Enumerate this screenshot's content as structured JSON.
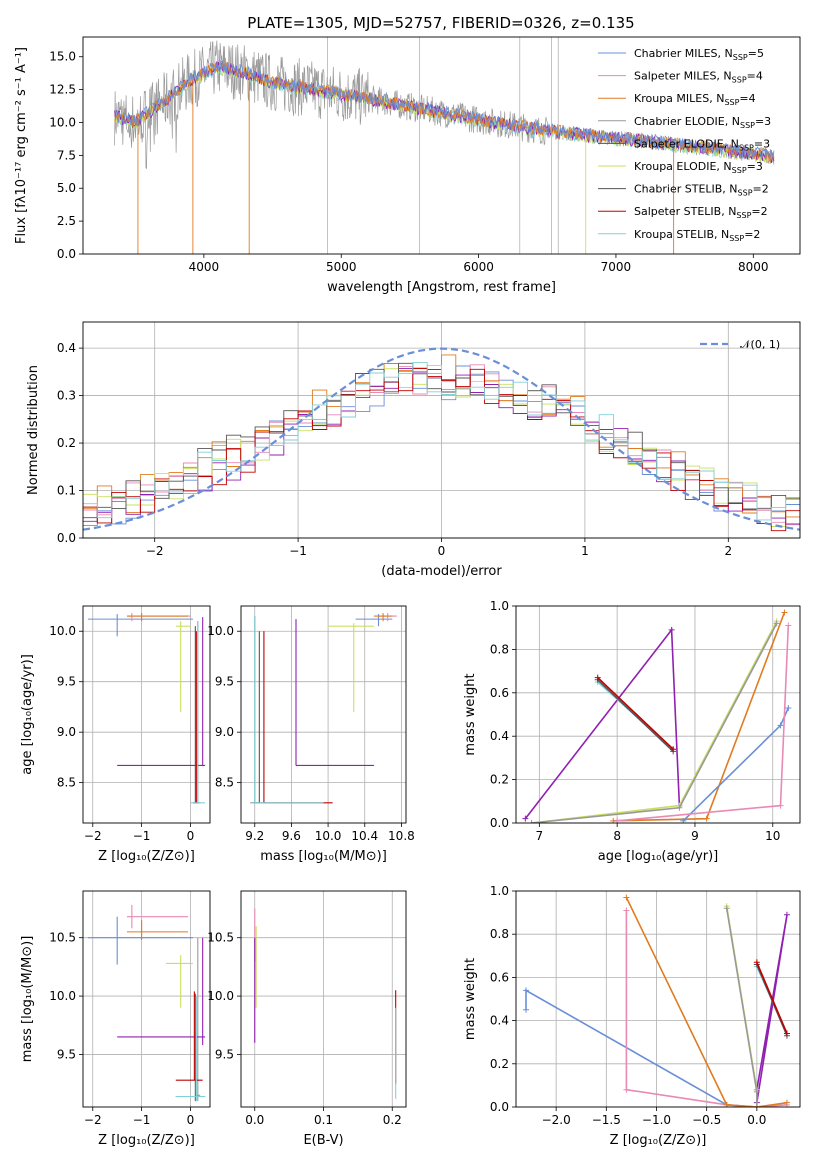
{
  "title": "PLATE=1305, MJD=52757, FIBERID=0326, z=0.135",
  "colors": {
    "chabrier_miles": "#6a8fd8",
    "salpeter_miles": "#e88ab4",
    "kroupa_miles": "#e07b20",
    "chabrier_elodie": "#999999",
    "salpeter_elodie": "#9020b0",
    "kroupa_elodie": "#c8e060",
    "chabrier_stelib": "#555555",
    "salpeter_stelib": "#c00000",
    "kroupa_stelib": "#80d0d8",
    "normal": "#6a8fd8"
  },
  "legend": [
    {
      "key": "chabrier_miles",
      "text": "Chabrier MILES, N",
      "sub": "SSP",
      "tail": "=5"
    },
    {
      "key": "salpeter_miles",
      "text": "Salpeter MILES, N",
      "sub": "SSP",
      "tail": "=4"
    },
    {
      "key": "kroupa_miles",
      "text": "Kroupa MILES, N",
      "sub": "SSP",
      "tail": "=4"
    },
    {
      "key": "chabrier_elodie",
      "text": "Chabrier ELODIE, N",
      "sub": "SSP",
      "tail": "=3"
    },
    {
      "key": "salpeter_elodie",
      "text": "Salpeter ELODIE, N",
      "sub": "SSP",
      "tail": "=3"
    },
    {
      "key": "kroupa_elodie",
      "text": "Kroupa ELODIE, N",
      "sub": "SSP",
      "tail": "=3"
    },
    {
      "key": "chabrier_stelib",
      "text": "Chabrier STELIB, N",
      "sub": "SSP",
      "tail": "=2"
    },
    {
      "key": "salpeter_stelib",
      "text": "Salpeter STELIB, N",
      "sub": "SSP",
      "tail": "=2"
    },
    {
      "key": "kroupa_stelib",
      "text": "Kroupa STELIB, N",
      "sub": "SSP",
      "tail": "=2"
    }
  ],
  "chart_data": [
    {
      "id": "spectrum",
      "type": "line",
      "xlabel": "wavelength [Angstrom, rest frame]",
      "ylabel": "Flux [fλ10⁻¹⁷ erg cm⁻² s⁻¹ A⁻¹]",
      "xlim": [
        3120,
        8340
      ],
      "ylim": [
        0,
        16.5
      ],
      "xticks": [
        4000,
        5000,
        6000,
        7000,
        8000
      ],
      "yticks": [
        0.0,
        2.5,
        5.0,
        7.5,
        10.0,
        12.5,
        15.0
      ],
      "continuum": {
        "x": [
          3350,
          3500,
          3700,
          3900,
          4100,
          4300,
          4500,
          4800,
          5200,
          5600,
          6000,
          6400,
          6800,
          7200,
          7600,
          8000,
          8150
        ],
        "y": [
          10.5,
          10.0,
          11.5,
          13.2,
          14.2,
          13.8,
          13.0,
          12.5,
          11.8,
          11.0,
          10.2,
          9.5,
          9.0,
          8.6,
          8.1,
          7.6,
          7.4
        ]
      },
      "model_range": [
        3400,
        7400
      ],
      "legend_loc": "upper right",
      "grid": false
    },
    {
      "id": "residuals",
      "type": "histogram",
      "xlabel": "(data-model)/error",
      "ylabel": "Normed distribution",
      "xlim": [
        -2.5,
        2.5
      ],
      "ylim": [
        0,
        0.455
      ],
      "xticks": [
        -2,
        -1,
        0,
        1,
        2
      ],
      "yticks": [
        0.0,
        0.1,
        0.2,
        0.3,
        0.4
      ],
      "bin_width": 0.1,
      "normal_curve_label": "𝒩(0, 1)",
      "legend_loc": "upper right",
      "grid": true
    },
    {
      "id": "z_age",
      "type": "errorbar",
      "xlabel": "Z [log₁₀(Z/Z⊙)]",
      "ylabel": "age  [log₁₀(age/yr)]",
      "xlim": [
        -2.2,
        0.4
      ],
      "ylim": [
        8.1,
        10.25
      ],
      "xticks": [
        -2,
        -1,
        0
      ],
      "yticks": [
        8.5,
        9.0,
        9.5,
        10.0
      ],
      "grid": true,
      "points": [
        {
          "key": "chabrier_miles",
          "x": -1.5,
          "xlo": -2.1,
          "xhi": 0.05,
          "y": 10.12,
          "ylo": 9.95,
          "yhi": 10.17
        },
        {
          "key": "salpeter_miles",
          "x": -1.2,
          "xlo": -1.3,
          "xhi": 0.0,
          "y": 10.15,
          "ylo": 10.1,
          "yhi": 10.18
        },
        {
          "key": "kroupa_miles",
          "x": -1.0,
          "xlo": -1.3,
          "xhi": -0.05,
          "y": 10.15,
          "ylo": 10.1,
          "yhi": 10.18
        },
        {
          "key": "chabrier_elodie",
          "x": 0.15,
          "xlo": 0.1,
          "xhi": 0.2,
          "y": 8.3,
          "ylo": 8.3,
          "yhi": 10.1
        },
        {
          "key": "salpeter_elodie",
          "x": 0.25,
          "xlo": -1.5,
          "xhi": 0.3,
          "y": 8.67,
          "ylo": 8.67,
          "yhi": 10.14
        },
        {
          "key": "kroupa_elodie",
          "x": -0.2,
          "xlo": -0.3,
          "xhi": 0.0,
          "y": 10.05,
          "ylo": 9.2,
          "yhi": 10.1
        },
        {
          "key": "chabrier_stelib",
          "x": 0.1,
          "xlo": 0.05,
          "xhi": 0.15,
          "y": 8.3,
          "ylo": 8.3,
          "yhi": 10.05
        },
        {
          "key": "salpeter_stelib",
          "x": 0.12,
          "xlo": 0.08,
          "xhi": 0.16,
          "y": 8.3,
          "ylo": 8.3,
          "yhi": 10.0
        },
        {
          "key": "kroupa_stelib",
          "x": 0.15,
          "xlo": 0.0,
          "xhi": 0.3,
          "y": 8.3,
          "ylo": 8.3,
          "yhi": 10.1
        }
      ]
    },
    {
      "id": "mass_age",
      "type": "errorbar",
      "xlabel": "mass [log₁₀(M/M⊙)]",
      "ylabel": "",
      "xlim": [
        9.05,
        10.85
      ],
      "ylim": [
        8.1,
        10.25
      ],
      "xticks": [
        9.2,
        9.6,
        10.0,
        10.4,
        10.8
      ],
      "ytick_values": [
        8.5,
        9.0,
        9.5,
        10.0
      ],
      "xtick_labels": [
        "9.2",
        "9.6",
        "10.0",
        "10.4",
        "10.8"
      ],
      "grid": true,
      "points": [
        {
          "key": "chabrier_miles",
          "x": 10.55,
          "xlo": 10.3,
          "xhi": 10.7,
          "y": 10.12,
          "ylo": 10.05,
          "yhi": 10.17
        },
        {
          "key": "salpeter_miles",
          "x": 10.65,
          "xlo": 10.55,
          "xhi": 10.75,
          "y": 10.15,
          "ylo": 10.1,
          "yhi": 10.18
        },
        {
          "key": "kroupa_miles",
          "x": 10.6,
          "xlo": 10.5,
          "xhi": 10.7,
          "y": 10.15,
          "ylo": 10.1,
          "yhi": 10.18
        },
        {
          "key": "chabrier_elodie",
          "x": 9.2,
          "xlo": 9.15,
          "xhi": 9.25,
          "y": 8.3,
          "ylo": 8.3,
          "yhi": 10.15
        },
        {
          "key": "salpeter_elodie",
          "x": 9.65,
          "xlo": 9.65,
          "xhi": 10.5,
          "y": 8.67,
          "ylo": 8.67,
          "yhi": 10.12
        },
        {
          "key": "kroupa_elodie",
          "x": 10.28,
          "xlo": 10.0,
          "xhi": 10.5,
          "y": 10.05,
          "ylo": 9.2,
          "yhi": 10.08
        },
        {
          "key": "chabrier_stelib",
          "x": 9.25,
          "xlo": 9.2,
          "xhi": 9.3,
          "y": 8.3,
          "ylo": 8.3,
          "yhi": 10.0
        },
        {
          "key": "salpeter_stelib",
          "x": 9.3,
          "xlo": 9.3,
          "xhi": 10.05,
          "y": 8.3,
          "ylo": 8.3,
          "yhi": 10.0
        },
        {
          "key": "kroupa_stelib",
          "x": 9.2,
          "xlo": 9.2,
          "xhi": 9.95,
          "y": 8.3,
          "ylo": 8.3,
          "yhi": 10.15
        }
      ]
    },
    {
      "id": "age_weight",
      "type": "line",
      "xlabel": "age  [log₁₀(age/yr)]",
      "ylabel": "mass weight",
      "xlim": [
        6.7,
        10.35
      ],
      "ylim": [
        0,
        1.0
      ],
      "xticks": [
        7,
        8,
        9,
        10
      ],
      "yticks": [
        0.0,
        0.2,
        0.4,
        0.6,
        0.8,
        1.0
      ],
      "grid": true,
      "series": [
        {
          "key": "kroupa_miles",
          "x": [
            7.95,
            9.15,
            10.15
          ],
          "y": [
            0.01,
            0.02,
            0.97
          ]
        },
        {
          "key": "chabrier_miles",
          "x": [
            8.85,
            10.1,
            10.2
          ],
          "y": [
            0.01,
            0.45,
            0.53
          ]
        },
        {
          "key": "salpeter_miles",
          "x": [
            8.0,
            10.1,
            10.2
          ],
          "y": [
            0.01,
            0.08,
            0.91
          ]
        },
        {
          "key": "salpeter_elodie",
          "x": [
            6.82,
            8.7,
            8.8
          ],
          "y": [
            0.02,
            0.89,
            0.08
          ]
        },
        {
          "key": "kroupa_elodie",
          "x": [
            6.9,
            8.8,
            10.05
          ],
          "y": [
            0.0,
            0.08,
            0.93
          ]
        },
        {
          "key": "chabrier_elodie",
          "x": [
            6.9,
            8.8,
            10.05
          ],
          "y": [
            0.0,
            0.07,
            0.92
          ]
        },
        {
          "key": "kroupa_stelib",
          "x": [
            7.75,
            8.72
          ],
          "y": [
            0.65,
            0.34
          ]
        },
        {
          "key": "chabrier_stelib",
          "x": [
            7.75,
            8.72
          ],
          "y": [
            0.66,
            0.33
          ]
        },
        {
          "key": "salpeter_stelib",
          "x": [
            7.75,
            8.72
          ],
          "y": [
            0.67,
            0.34
          ]
        }
      ]
    },
    {
      "id": "z_mass",
      "type": "errorbar",
      "xlabel": "Z [log₁₀(Z/Z⊙)]",
      "ylabel": "mass [log₁₀(M/M⊙)]",
      "xlim": [
        -2.2,
        0.4
      ],
      "ylim": [
        9.05,
        10.9
      ],
      "xticks": [
        -2,
        -1,
        0
      ],
      "yticks": [
        9.5,
        10.0,
        10.5
      ],
      "grid": true,
      "points": [
        {
          "key": "chabrier_miles",
          "x": -1.5,
          "xlo": -2.1,
          "xhi": 0.05,
          "y": 10.5,
          "ylo": 10.27,
          "yhi": 10.68
        },
        {
          "key": "salpeter_miles",
          "x": -1.2,
          "xlo": -1.3,
          "xhi": -0.05,
          "y": 10.68,
          "ylo": 10.58,
          "yhi": 10.78
        },
        {
          "key": "kroupa_miles",
          "x": -1.0,
          "xlo": -1.3,
          "xhi": -0.05,
          "y": 10.55,
          "ylo": 10.48,
          "yhi": 10.65
        },
        {
          "key": "chabrier_elodie",
          "x": 0.15,
          "xlo": 0.1,
          "xhi": 0.2,
          "y": 9.15,
          "ylo": 9.1,
          "yhi": 10.5
        },
        {
          "key": "salpeter_elodie",
          "x": 0.25,
          "xlo": -1.5,
          "xhi": 0.3,
          "y": 9.65,
          "ylo": 9.58,
          "yhi": 10.5
        },
        {
          "key": "kroupa_elodie",
          "x": -0.2,
          "xlo": -0.5,
          "xhi": 0.05,
          "y": 10.28,
          "ylo": 9.9,
          "yhi": 10.35
        },
        {
          "key": "chabrier_stelib",
          "x": 0.1,
          "xlo": -0.3,
          "xhi": 0.3,
          "y": 9.14,
          "ylo": 9.1,
          "yhi": 10.02
        },
        {
          "key": "salpeter_stelib",
          "x": 0.08,
          "xlo": -0.3,
          "xhi": 0.25,
          "y": 9.28,
          "ylo": 9.28,
          "yhi": 10.04
        },
        {
          "key": "kroupa_stelib",
          "x": 0.12,
          "xlo": -0.3,
          "xhi": 0.3,
          "y": 9.14,
          "ylo": 9.1,
          "yhi": 10.0
        }
      ]
    },
    {
      "id": "ebv_mass",
      "type": "errorbar",
      "xlabel": "E(B-V)",
      "ylabel": "",
      "xlim": [
        -0.02,
        0.22
      ],
      "ylim": [
        9.05,
        10.9
      ],
      "xticks": [
        0.0,
        0.1,
        0.2
      ],
      "ytick_values": [
        9.5,
        10.0,
        10.5
      ],
      "xtick_labels": [
        "0.0",
        "0.1",
        "0.2"
      ],
      "grid": true,
      "points": [
        {
          "key": "salpeter_miles",
          "x": 0.0,
          "xlo": 0.0,
          "xhi": 0.0,
          "y": 10.6,
          "ylo": 10.3,
          "yhi": 10.75
        },
        {
          "key": "salpeter_elodie",
          "x": 0.0,
          "xlo": 0.0,
          "xhi": 0.0,
          "y": 10.0,
          "ylo": 9.6,
          "yhi": 10.5
        },
        {
          "key": "kroupa_elodie",
          "x": 0.002,
          "xlo": 0.0,
          "xhi": 0.0,
          "y": 10.2,
          "ylo": 9.9,
          "yhi": 10.6
        },
        {
          "key": "salpeter_stelib",
          "x": 0.205,
          "xlo": 0.205,
          "xhi": 0.205,
          "y": 9.6,
          "ylo": 9.25,
          "yhi": 10.05
        },
        {
          "key": "kroupa_stelib",
          "x": 0.205,
          "xlo": 0.205,
          "xhi": 0.205,
          "y": 9.5,
          "ylo": 9.12,
          "yhi": 9.9
        }
      ]
    },
    {
      "id": "z_weight",
      "type": "line",
      "xlabel": "Z [log₁₀(Z/Z⊙)]",
      "ylabel": "mass weight",
      "xlim": [
        -2.4,
        0.43
      ],
      "ylim": [
        0,
        1.0
      ],
      "xticks": [
        -2.0,
        -1.5,
        -1.0,
        -0.5,
        0.0
      ],
      "xtick_labels": [
        "−2.0",
        "−1.5",
        "−1.0",
        "−0.5",
        "0.0"
      ],
      "yticks": [
        0.0,
        0.2,
        0.4,
        0.6,
        0.8,
        1.0
      ],
      "grid": true,
      "series": [
        {
          "key": "chabrier_miles",
          "x": [
            -2.3,
            -2.3,
            -0.3,
            0.0
          ],
          "y": [
            0.45,
            0.54,
            0.01,
            0.0
          ]
        },
        {
          "key": "salpeter_miles",
          "x": [
            -1.3,
            -1.3,
            -0.3,
            0.0,
            0.3
          ],
          "y": [
            0.91,
            0.08,
            0.01,
            0.0,
            0.01
          ]
        },
        {
          "key": "kroupa_miles",
          "x": [
            -1.3,
            -0.3,
            0.0,
            0.3
          ],
          "y": [
            0.97,
            0.01,
            0.0,
            0.02
          ]
        },
        {
          "key": "salpeter_elodie",
          "x": [
            0.0,
            0.3,
            0.0
          ],
          "y": [
            0.08,
            0.89,
            0.02
          ]
        },
        {
          "key": "kroupa_elodie",
          "x": [
            -0.3,
            0.0,
            0.0
          ],
          "y": [
            0.93,
            0.08,
            0.0
          ]
        },
        {
          "key": "chabrier_elodie",
          "x": [
            -0.3,
            0.0,
            0.0
          ],
          "y": [
            0.92,
            0.07,
            0.0
          ]
        },
        {
          "key": "kroupa_stelib",
          "x": [
            0.0,
            0.3
          ],
          "y": [
            0.65,
            0.34
          ]
        },
        {
          "key": "chabrier_stelib",
          "x": [
            0.0,
            0.3
          ],
          "y": [
            0.66,
            0.33
          ]
        },
        {
          "key": "salpeter_stelib",
          "x": [
            0.0,
            0.3
          ],
          "y": [
            0.67,
            0.34
          ]
        }
      ]
    }
  ]
}
